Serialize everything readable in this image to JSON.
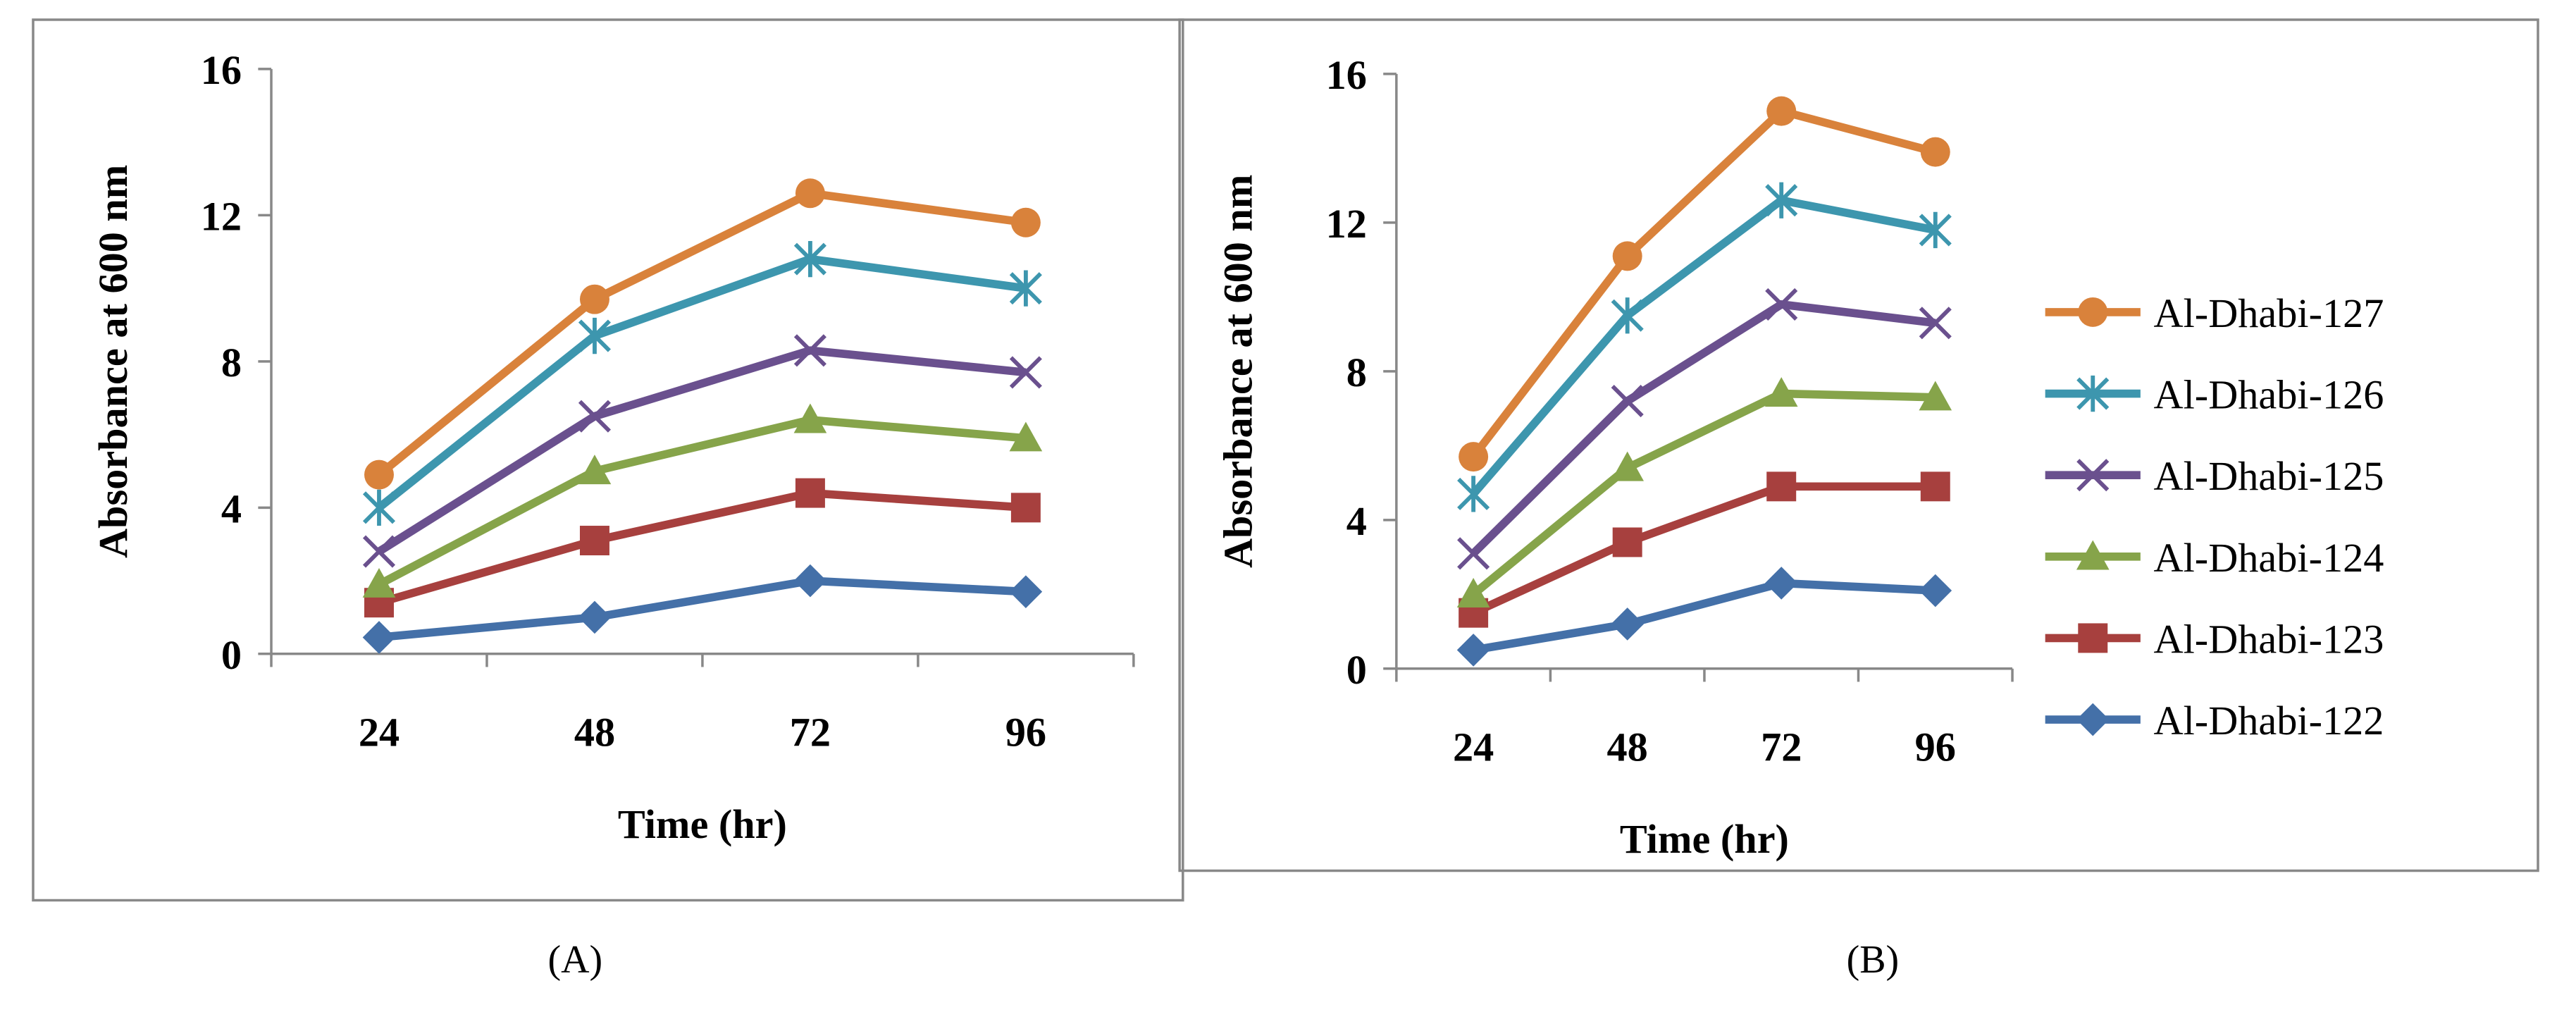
{
  "colors": {
    "Al-Dhabi-127": "#D9823B",
    "Al-Dhabi-126": "#3D96AE",
    "Al-Dhabi-125": "#6A508E",
    "Al-Dhabi-124": "#86A44A",
    "Al-Dhabi-123": "#A7403E",
    "Al-Dhabi-122": "#4470A8"
  },
  "chart_data": [
    {
      "type": "line",
      "panel_label": "(A)",
      "xlabel": "Time (hr)",
      "ylabel": "Absorbance at 600 nm",
      "categories": [
        "24",
        "48",
        "72",
        "96"
      ],
      "ylim": [
        0,
        16
      ],
      "yticks": [
        "0",
        "4",
        "8",
        "12",
        "16"
      ],
      "series": [
        {
          "name": "Al-Dhabi-127",
          "marker": "circle",
          "values": [
            4.9,
            9.7,
            12.6,
            11.8
          ]
        },
        {
          "name": "Al-Dhabi-126",
          "marker": "asterisk",
          "values": [
            4.0,
            8.7,
            10.8,
            10.0
          ]
        },
        {
          "name": "Al-Dhabi-125",
          "marker": "x",
          "values": [
            2.8,
            6.5,
            8.3,
            7.7
          ]
        },
        {
          "name": "Al-Dhabi-124",
          "marker": "triangle",
          "values": [
            1.9,
            5.0,
            6.4,
            5.9
          ]
        },
        {
          "name": "Al-Dhabi-123",
          "marker": "square",
          "values": [
            1.4,
            3.1,
            4.4,
            4.0
          ]
        },
        {
          "name": "Al-Dhabi-122",
          "marker": "diamond",
          "values": [
            0.45,
            1.0,
            2.0,
            1.7
          ]
        }
      ]
    },
    {
      "type": "line",
      "panel_label": "(B)",
      "xlabel": "Time (hr)",
      "ylabel": "Absorbance at 600 nm",
      "categories": [
        "24",
        "48",
        "72",
        "96"
      ],
      "ylim": [
        0,
        16
      ],
      "yticks": [
        "0",
        "4",
        "8",
        "12",
        "16"
      ],
      "legend": "right",
      "series": [
        {
          "name": "Al-Dhabi-127",
          "marker": "circle",
          "values": [
            5.7,
            11.1,
            15.0,
            13.9
          ]
        },
        {
          "name": "Al-Dhabi-126",
          "marker": "asterisk",
          "values": [
            4.7,
            9.5,
            12.6,
            11.8
          ]
        },
        {
          "name": "Al-Dhabi-125",
          "marker": "x",
          "values": [
            3.1,
            7.2,
            9.8,
            9.3
          ]
        },
        {
          "name": "Al-Dhabi-124",
          "marker": "triangle",
          "values": [
            2.0,
            5.4,
            7.4,
            7.3
          ]
        },
        {
          "name": "Al-Dhabi-123",
          "marker": "square",
          "values": [
            1.5,
            3.4,
            4.9,
            4.9
          ]
        },
        {
          "name": "Al-Dhabi-122",
          "marker": "diamond",
          "values": [
            0.5,
            1.2,
            2.3,
            2.1
          ]
        }
      ]
    }
  ]
}
